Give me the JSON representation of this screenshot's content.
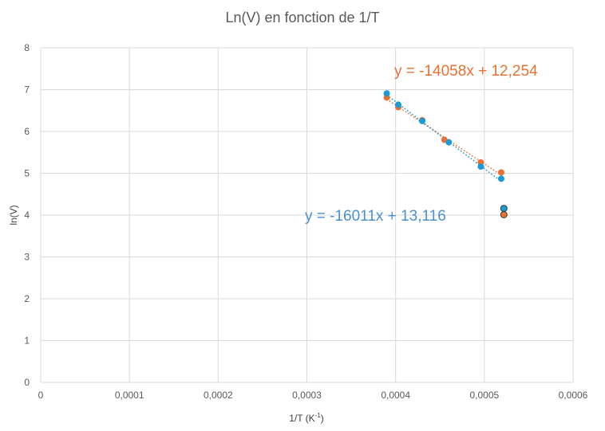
{
  "chart_data": {
    "type": "scatter",
    "title": "Ln(V) en fonction de 1/T",
    "xlabel_main": "1/T (K",
    "xlabel_sup": "-1",
    "xlabel_end": ")",
    "ylabel": "ln(V)",
    "xlim": [
      0,
      0.0006
    ],
    "ylim": [
      0,
      8
    ],
    "x_ticks": [
      0,
      0.0001,
      0.0002,
      0.0003,
      0.0004,
      0.0005,
      0.0006
    ],
    "x_tick_labels": [
      "0",
      "0,0001",
      "0,0002",
      "0,0003",
      "0,0004",
      "0,0005",
      "0,0006"
    ],
    "y_ticks": [
      0,
      1,
      2,
      3,
      4,
      5,
      6,
      7,
      8
    ],
    "y_tick_labels": [
      "0",
      "1",
      "2",
      "3",
      "4",
      "5",
      "6",
      "7",
      "8"
    ],
    "grid": true,
    "series": [
      {
        "color": "#E97132",
        "points": [
          {
            "x": 0.00039,
            "y": 6.81
          },
          {
            "x": 0.000403,
            "y": 6.58
          },
          {
            "x": 0.00043,
            "y": 6.27
          },
          {
            "x": 0.000455,
            "y": 5.8
          },
          {
            "x": 0.000496,
            "y": 5.26
          },
          {
            "x": 0.000519,
            "y": 5.02
          },
          {
            "x": 0.000522,
            "y": 4.01
          }
        ],
        "trendline": {
          "slope": -14058,
          "intercept": 12.254,
          "x_range": [
            0.00039,
            0.000519
          ]
        },
        "equation": "y = -14058x + 12,254",
        "equation_color": "#E97132"
      },
      {
        "color": "#1A9BD7",
        "points": [
          {
            "x": 0.00039,
            "y": 6.91
          },
          {
            "x": 0.000403,
            "y": 6.64
          },
          {
            "x": 0.00043,
            "y": 6.25
          },
          {
            "x": 0.00046,
            "y": 5.74
          },
          {
            "x": 0.000496,
            "y": 5.16
          },
          {
            "x": 0.000519,
            "y": 4.87
          },
          {
            "x": 0.000522,
            "y": 4.16
          }
        ],
        "trendline": {
          "slope": -16011,
          "intercept": 13.116,
          "x_range": [
            0.00039,
            0.000519
          ]
        },
        "equation": "y = -16011x + 13,116",
        "equation_color": "#4A90D0"
      }
    ]
  }
}
